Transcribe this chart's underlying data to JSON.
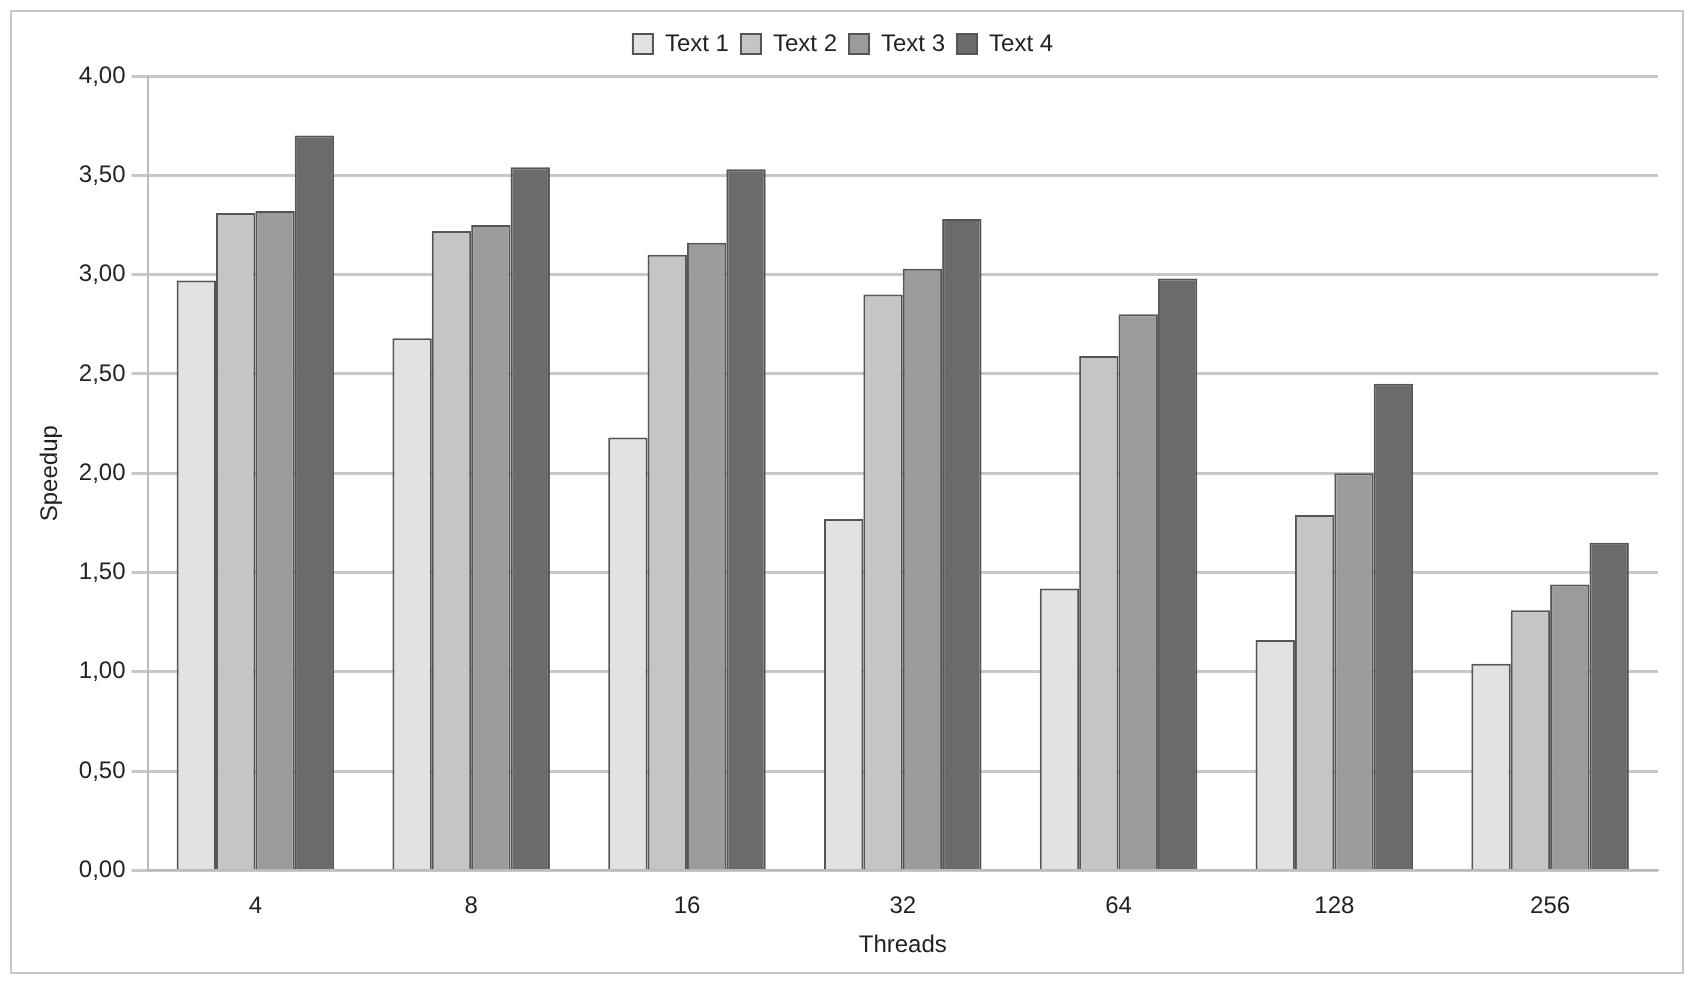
{
  "chart_data": {
    "type": "bar",
    "xlabel": "Threads",
    "ylabel": "Speedup",
    "categories": [
      "4",
      "8",
      "16",
      "32",
      "64",
      "128",
      "256"
    ],
    "series": [
      {
        "name": "Text 1",
        "color": "#e2e2e2",
        "values": [
          2.97,
          2.68,
          2.18,
          1.77,
          1.42,
          1.16,
          1.04
        ]
      },
      {
        "name": "Text 2",
        "color": "#c4c6c5",
        "values": [
          3.31,
          3.22,
          3.1,
          2.9,
          2.59,
          1.79,
          1.31
        ]
      },
      {
        "name": "Text 3",
        "color": "#9a9b9a",
        "values": [
          3.32,
          3.25,
          3.16,
          3.03,
          2.8,
          2.0,
          1.44
        ]
      },
      {
        "name": "Text 4",
        "color": "#6b6b6b",
        "values": [
          3.7,
          3.54,
          3.53,
          3.28,
          2.98,
          2.45,
          1.65
        ]
      }
    ],
    "ylim": [
      0,
      4
    ],
    "yticks": [
      {
        "value": 0,
        "label": "0,00"
      },
      {
        "value": 0.5,
        "label": "0,50"
      },
      {
        "value": 1,
        "label": "1,00"
      },
      {
        "value": 1.5,
        "label": "1,50"
      },
      {
        "value": 2,
        "label": "2,00"
      },
      {
        "value": 2.5,
        "label": "2,50"
      },
      {
        "value": 3,
        "label": "3,00"
      },
      {
        "value": 3.5,
        "label": "3,50"
      },
      {
        "value": 4,
        "label": "4,00"
      }
    ],
    "grid": "y",
    "legend": "top"
  }
}
